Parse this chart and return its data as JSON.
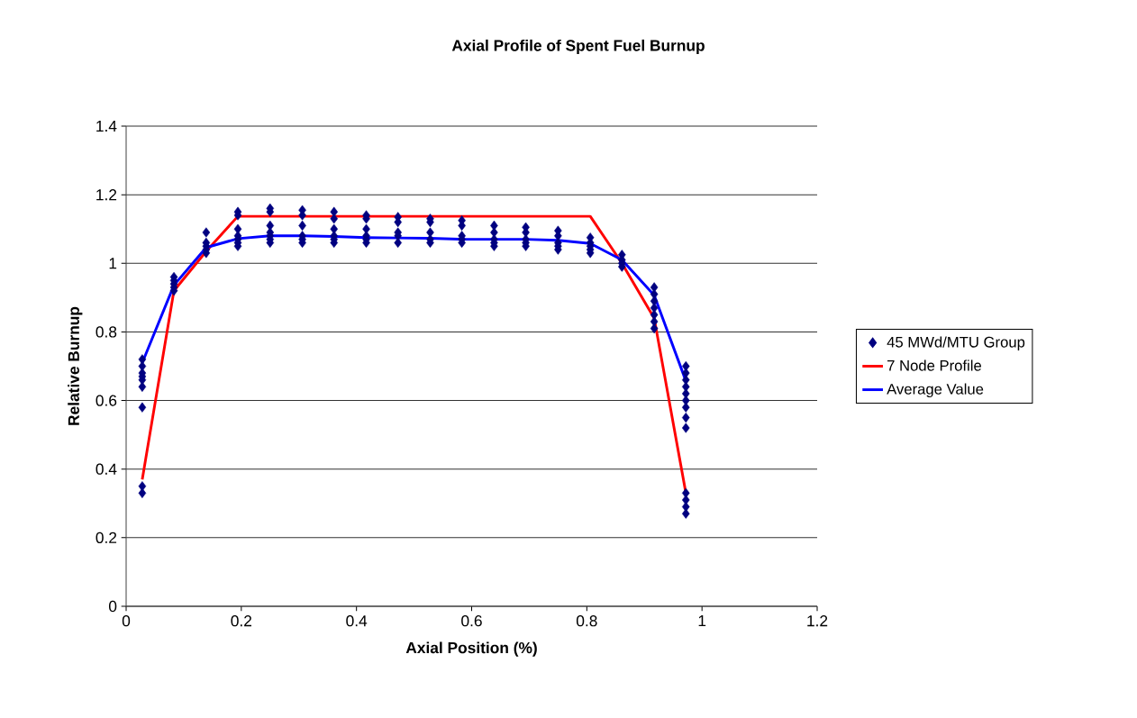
{
  "chart_data": {
    "type": "scatter",
    "title": "Axial Profile of Spent Fuel Burnup",
    "xlabel": "Axial Position (%)",
    "ylabel": "Relative Burnup",
    "xlim": [
      0,
      1.2
    ],
    "xticks": [
      0,
      0.2,
      0.4,
      0.6,
      0.8,
      1,
      1.2
    ],
    "ylim": [
      0,
      1.4
    ],
    "yticks": [
      0,
      0.2,
      0.4,
      0.6,
      0.8,
      1,
      1.2,
      1.4
    ],
    "grid": "y",
    "legend": "right",
    "series": [
      {
        "name": "45 MWd/MTU Group",
        "marker": "diamond",
        "color": "#000080",
        "x": [
          0.028,
          0.028,
          0.028,
          0.028,
          0.028,
          0.028,
          0.028,
          0.028,
          0.028,
          0.083,
          0.083,
          0.083,
          0.083,
          0.083,
          0.139,
          0.139,
          0.139,
          0.139,
          0.139,
          0.194,
          0.194,
          0.194,
          0.194,
          0.194,
          0.194,
          0.194,
          0.25,
          0.25,
          0.25,
          0.25,
          0.25,
          0.25,
          0.25,
          0.306,
          0.306,
          0.306,
          0.306,
          0.306,
          0.306,
          0.361,
          0.361,
          0.361,
          0.361,
          0.361,
          0.361,
          0.417,
          0.417,
          0.417,
          0.417,
          0.417,
          0.417,
          0.472,
          0.472,
          0.472,
          0.472,
          0.472,
          0.528,
          0.528,
          0.528,
          0.528,
          0.528,
          0.583,
          0.583,
          0.583,
          0.583,
          0.583,
          0.639,
          0.639,
          0.639,
          0.639,
          0.639,
          0.694,
          0.694,
          0.694,
          0.694,
          0.694,
          0.75,
          0.75,
          0.75,
          0.75,
          0.75,
          0.806,
          0.806,
          0.806,
          0.806,
          0.806,
          0.861,
          0.861,
          0.861,
          0.861,
          0.917,
          0.917,
          0.917,
          0.917,
          0.917,
          0.917,
          0.917,
          0.972,
          0.972,
          0.972,
          0.972,
          0.972,
          0.972,
          0.972,
          0.972,
          0.972,
          0.972,
          0.972,
          0.972,
          0.972
        ],
        "values": [
          0.33,
          0.35,
          0.58,
          0.64,
          0.66,
          0.67,
          0.68,
          0.7,
          0.72,
          0.92,
          0.93,
          0.94,
          0.95,
          0.96,
          1.03,
          1.04,
          1.05,
          1.06,
          1.09,
          1.15,
          1.14,
          1.1,
          1.08,
          1.07,
          1.06,
          1.05,
          1.16,
          1.15,
          1.11,
          1.09,
          1.08,
          1.07,
          1.06,
          1.155,
          1.14,
          1.11,
          1.08,
          1.07,
          1.06,
          1.15,
          1.13,
          1.1,
          1.08,
          1.07,
          1.06,
          1.14,
          1.13,
          1.1,
          1.08,
          1.07,
          1.06,
          1.135,
          1.12,
          1.09,
          1.08,
          1.06,
          1.13,
          1.12,
          1.09,
          1.07,
          1.06,
          1.125,
          1.11,
          1.08,
          1.07,
          1.06,
          1.11,
          1.09,
          1.07,
          1.06,
          1.05,
          1.105,
          1.09,
          1.07,
          1.06,
          1.05,
          1.095,
          1.08,
          1.06,
          1.05,
          1.04,
          1.075,
          1.06,
          1.05,
          1.04,
          1.03,
          1.025,
          1.01,
          1.0,
          0.99,
          0.93,
          0.91,
          0.89,
          0.87,
          0.85,
          0.83,
          0.81,
          0.7,
          0.68,
          0.66,
          0.64,
          0.62,
          0.6,
          0.58,
          0.55,
          0.52,
          0.33,
          0.31,
          0.29,
          0.27
        ]
      },
      {
        "name": "7 Node Profile",
        "type": "line",
        "color": "#ff0000",
        "x": [
          0.028,
          0.083,
          0.139,
          0.194,
          0.806,
          0.861,
          0.917,
          0.972
        ],
        "values": [
          0.37,
          0.92,
          1.035,
          1.137,
          1.137,
          1.0,
          0.84,
          0.33
        ]
      },
      {
        "name": "Average Value",
        "type": "line",
        "color": "#0000ff",
        "x": [
          0.028,
          0.083,
          0.139,
          0.194,
          0.25,
          0.306,
          0.361,
          0.417,
          0.472,
          0.528,
          0.583,
          0.639,
          0.694,
          0.75,
          0.806,
          0.861,
          0.917,
          0.972
        ],
        "values": [
          0.71,
          0.936,
          1.046,
          1.072,
          1.08,
          1.08,
          1.078,
          1.075,
          1.074,
          1.073,
          1.07,
          1.07,
          1.07,
          1.067,
          1.058,
          1.01,
          0.907,
          0.657
        ]
      }
    ]
  }
}
